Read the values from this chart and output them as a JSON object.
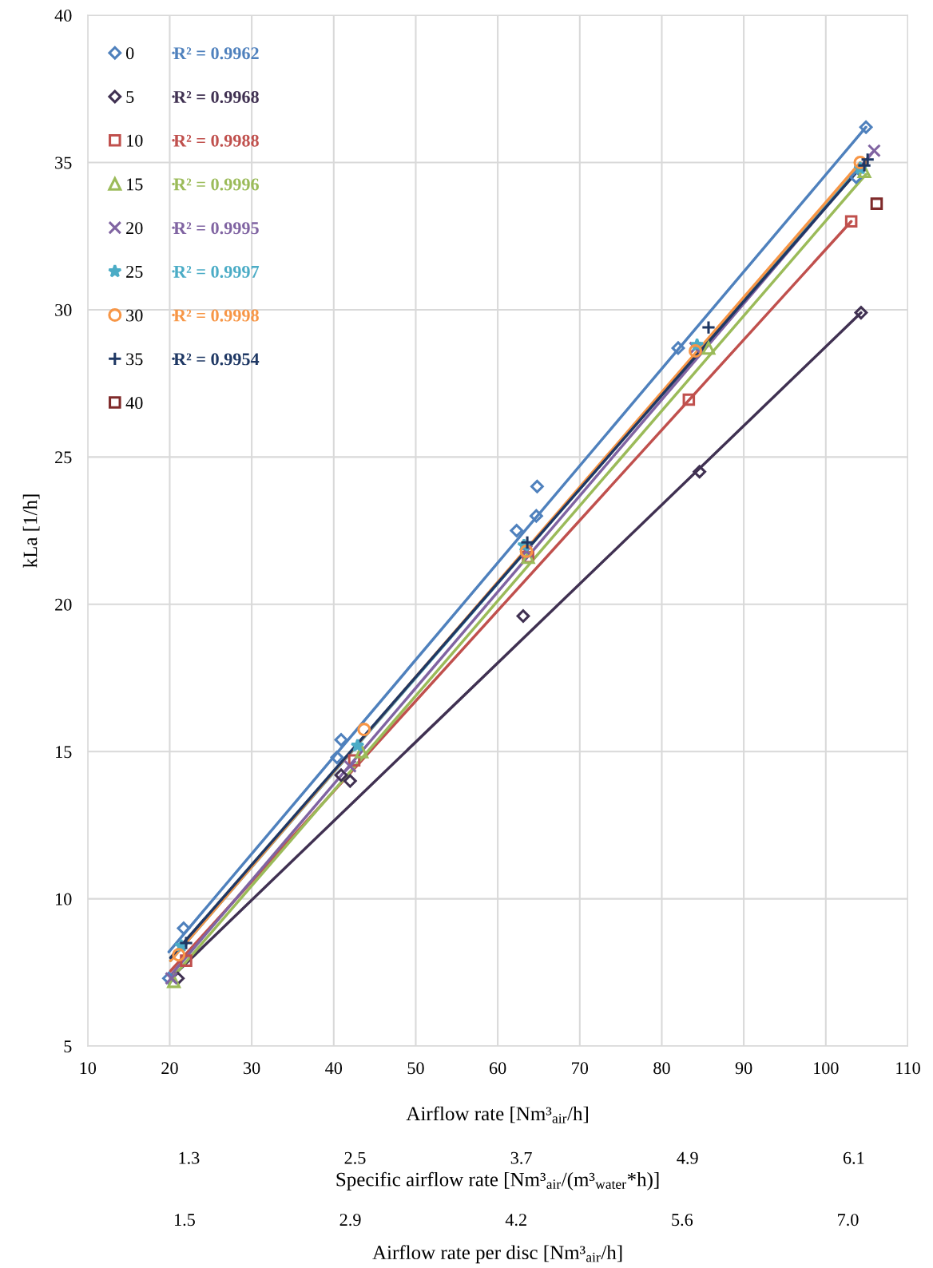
{
  "chart_data": {
    "type": "scatter",
    "xlabel": "Airflow rate [Nm³$_{air}$/h]",
    "ylabel": "kLa [1/h]",
    "xlim": [
      10,
      110
    ],
    "xticks": [
      10,
      20,
      30,
      40,
      50,
      60,
      70,
      80,
      90,
      100,
      110
    ],
    "ylim": [
      5,
      40
    ],
    "yticks": [
      5,
      10,
      15,
      20,
      25,
      30,
      35,
      40
    ],
    "x2lim": [
      0.57,
      6.49
    ],
    "x2label": "Specific airflow rate [Nm³$_{air}$/(m³$_{water}$*h)]",
    "x2ticks": [
      {
        "value": 1.3,
        "label": "1.3"
      },
      {
        "value": 2.5,
        "label": "2.5"
      },
      {
        "value": 3.7,
        "label": "3.7"
      },
      {
        "value": 4.9,
        "label": "4.9"
      },
      {
        "value": 6.1,
        "label": "6.1"
      }
    ],
    "annotations": [
      "Airflow rate per disc [Nm³$_{air}$/h]",
      "1.5",
      "2.9",
      "4.2",
      "5.6",
      "7.0"
    ],
    "grid": true,
    "legend": "top left",
    "series": [
      {
        "name": "0",
        "marker": "diamond",
        "color": "#4f81bd",
        "x": [
          19.9,
          21.7,
          40.4,
          40.9,
          62.3,
          64.7,
          64.8,
          82.0,
          103.7,
          104.9
        ],
        "values": [
          7.3,
          9.0,
          14.8,
          15.4,
          22.5,
          23.0,
          24.0,
          28.7,
          34.5,
          36.2
        ]
      },
      {
        "name": "5",
        "marker": "diamond",
        "color": "#403152",
        "x": [
          21.0,
          40.9,
          42.0,
          63.1,
          84.6,
          104.3
        ],
        "values": [
          7.3,
          14.2,
          14.0,
          19.6,
          24.5,
          29.9
        ]
      },
      {
        "name": "10",
        "marker": "square",
        "color": "#c0504d",
        "x": [
          22.0,
          42.5,
          63.7,
          83.3,
          103.1
        ],
        "values": [
          7.9,
          14.7,
          21.6,
          26.95,
          33.0
        ]
      },
      {
        "name": "15",
        "marker": "triangle",
        "color": "#9bbb59",
        "x": [
          20.5,
          43.4,
          63.7,
          85.7,
          104.7
        ],
        "values": [
          7.2,
          15.0,
          21.6,
          28.7,
          34.7
        ]
      },
      {
        "name": "20",
        "marker": "cross",
        "color": "#8064a2",
        "x": [
          20.2,
          42.0,
          63.5,
          84.1,
          105.9
        ],
        "values": [
          7.3,
          14.5,
          21.8,
          28.7,
          35.4
        ]
      },
      {
        "name": "25",
        "marker": "star",
        "color": "#4bacc6",
        "x": [
          21.4,
          42.9,
          63.2,
          84.3,
          104.2
        ],
        "values": [
          8.4,
          15.2,
          22.0,
          28.8,
          34.8
        ]
      },
      {
        "name": "30",
        "marker": "circle",
        "color": "#f79646",
        "x": [
          21.1,
          43.7,
          63.5,
          84.1,
          104.2
        ],
        "values": [
          8.1,
          15.75,
          21.8,
          28.6,
          35.0
        ]
      },
      {
        "name": "35",
        "marker": "plus",
        "color": "#1f3864",
        "x": [
          22.0,
          63.6,
          85.7,
          104.7,
          105.1
        ],
        "values": [
          8.5,
          22.1,
          29.4,
          34.9,
          35.1
        ]
      },
      {
        "name": "40",
        "marker": "square",
        "color": "#7f2a2a",
        "x": [
          106.2
        ],
        "values": [
          33.6
        ]
      },
      {
        "name": "R² = 0.9962",
        "type": "line",
        "color": "#4f81bd",
        "x": [
          19.9,
          104.9
        ],
        "values": [
          8.2,
          36.2
        ]
      },
      {
        "name": "R² = 0.9968",
        "type": "line",
        "color": "#403152",
        "x": [
          20.1,
          104.3
        ],
        "values": [
          7.3,
          29.9
        ]
      },
      {
        "name": "R² = 0.9988",
        "type": "line",
        "color": "#c0504d",
        "x": [
          20.1,
          103.1
        ],
        "values": [
          7.55,
          33.0
        ]
      },
      {
        "name": "R² = 0.9996",
        "type": "line",
        "color": "#9bbb59",
        "x": [
          20.1,
          104.9
        ],
        "values": [
          7.25,
          34.6
        ]
      },
      {
        "name": "R² = 0.9995",
        "type": "line",
        "color": "#8064a2",
        "x": [
          20.1,
          105.9
        ],
        "values": [
          7.4,
          35.4
        ]
      },
      {
        "name": "R² = 0.9997",
        "type": "line",
        "color": "#4bacc6",
        "x": [
          20.1,
          104.2
        ],
        "values": [
          7.9,
          34.9
        ]
      },
      {
        "name": "R² = 0.9998",
        "type": "line",
        "color": "#f79646",
        "x": [
          20.1,
          104.2
        ],
        "values": [
          7.9,
          35.0
        ]
      },
      {
        "name": "R² = 0.9954",
        "type": "line",
        "color": "#1f3864",
        "x": [
          20.1,
          105.1
        ],
        "values": [
          8.0,
          35.1
        ]
      }
    ]
  }
}
